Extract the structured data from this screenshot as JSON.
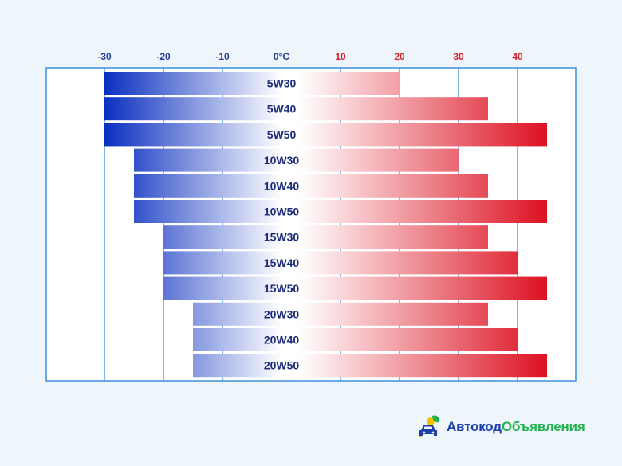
{
  "chart_data": {
    "type": "bar",
    "orientation": "horizontal-range",
    "title": "",
    "xlabel": "",
    "ylabel": "",
    "xlim": [
      -40,
      50
    ],
    "x_ticks": [
      {
        "value": -30,
        "label": "-30"
      },
      {
        "value": -20,
        "label": "-20"
      },
      {
        "value": -10,
        "label": "-10"
      },
      {
        "value": 0,
        "label": "0°C"
      },
      {
        "value": 10,
        "label": "10"
      },
      {
        "value": 20,
        "label": "20"
      },
      {
        "value": 30,
        "label": "30"
      },
      {
        "value": 40,
        "label": "40"
      }
    ],
    "grid": true,
    "series": [
      {
        "label": "5W30",
        "min": -30,
        "max": 20
      },
      {
        "label": "5W40",
        "min": -30,
        "max": 35
      },
      {
        "label": "5W50",
        "min": -30,
        "max": 45
      },
      {
        "label": "10W30",
        "min": -25,
        "max": 30
      },
      {
        "label": "10W40",
        "min": -25,
        "max": 35
      },
      {
        "label": "10W50",
        "min": -25,
        "max": 45
      },
      {
        "label": "15W30",
        "min": -20,
        "max": 35
      },
      {
        "label": "15W40",
        "min": -20,
        "max": 40
      },
      {
        "label": "15W50",
        "min": -20,
        "max": 45
      },
      {
        "label": "20W30",
        "min": -15,
        "max": 35
      },
      {
        "label": "20W40",
        "min": -15,
        "max": 40
      },
      {
        "label": "20W50",
        "min": -15,
        "max": 45
      }
    ],
    "colors": {
      "cold": "#0a2fbf",
      "neutral": "#ffffff",
      "hot": "#dc1020",
      "negative_tick": "#1f3b9e",
      "positive_tick": "#d81e2c",
      "grid": "#3f8fd8",
      "background": "#eef6fc"
    }
  },
  "logo": {
    "part1": "Автокод",
    "part2": "Объявления",
    "icon": "car-icon"
  }
}
